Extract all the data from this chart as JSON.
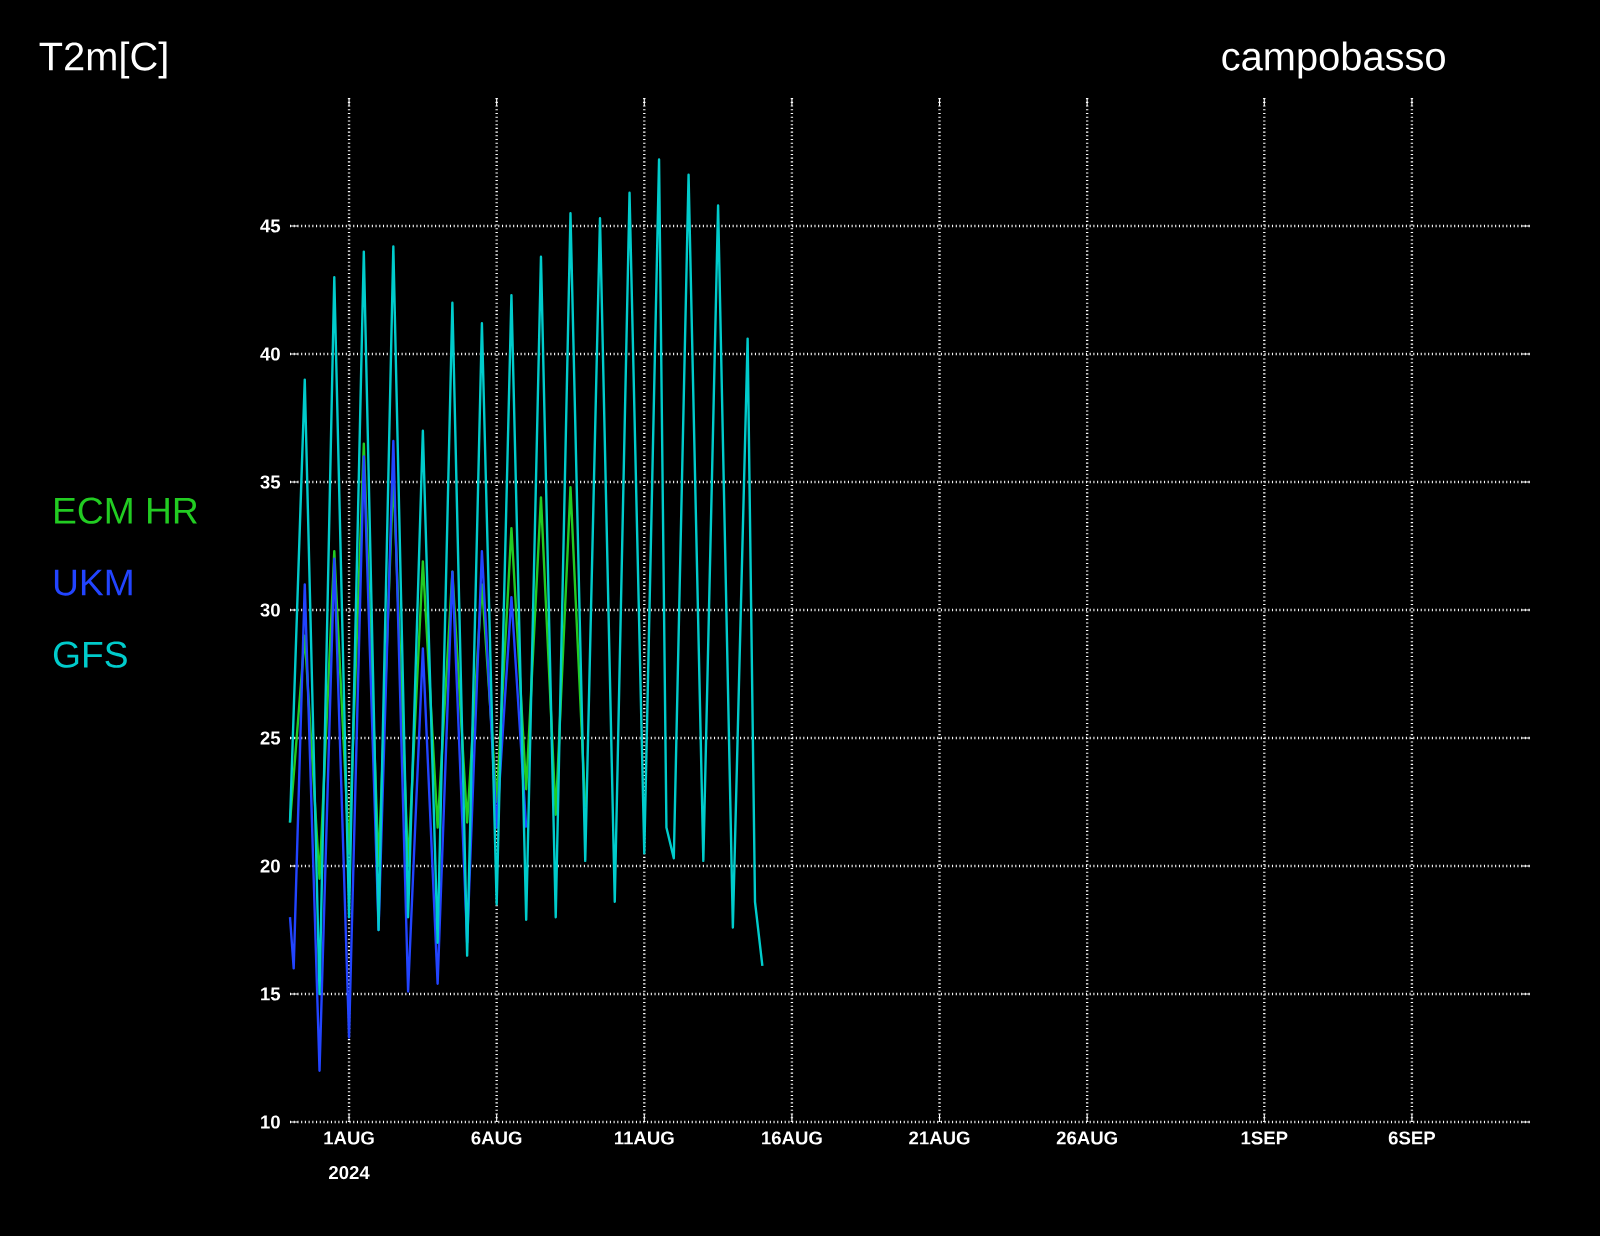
{
  "chart_data": {
    "type": "line",
    "title": "T2m[C]",
    "subtitle": "campobasso",
    "annotations": [
      "2024"
    ],
    "xlim": [
      "2024-07-30",
      "2024-09-10"
    ],
    "xticks": [
      {
        "value": "2024-08-01",
        "label": "1AUG"
      },
      {
        "value": "2024-08-06",
        "label": "6AUG"
      },
      {
        "value": "2024-08-11",
        "label": "11AUG"
      },
      {
        "value": "2024-08-16",
        "label": "16AUG"
      },
      {
        "value": "2024-08-21",
        "label": "21AUG"
      },
      {
        "value": "2024-08-26",
        "label": "26AUG"
      },
      {
        "value": "2024-09-01",
        "label": "1SEP"
      },
      {
        "value": "2024-09-06",
        "label": "6SEP"
      }
    ],
    "ylim": [
      10,
      50
    ],
    "yticks": [
      10,
      15,
      20,
      25,
      30,
      35,
      40,
      45
    ],
    "grid": true,
    "legend": "left",
    "marker": "none",
    "line_style": "solid",
    "series": [
      {
        "name": "ECM HR",
        "color": "#22cc22",
        "x": [
          "2024-07-30T00:00",
          "2024-07-30T12:00",
          "2024-07-31T00:00",
          "2024-07-31T12:00",
          "2024-08-01T00:00",
          "2024-08-01T12:00",
          "2024-08-02T00:00",
          "2024-08-02T12:00",
          "2024-08-03T00:00",
          "2024-08-03T12:00",
          "2024-08-04T00:00",
          "2024-08-04T12:00",
          "2024-08-05T00:00",
          "2024-08-05T12:00",
          "2024-08-06T00:00",
          "2024-08-06T12:00",
          "2024-08-07T00:00",
          "2024-08-07T12:00",
          "2024-08-08T00:00",
          "2024-08-08T12:00",
          "2024-08-09T00:00"
        ],
        "values": [
          21.7,
          29.0,
          19.5,
          32.3,
          20.5,
          36.5,
          20.0,
          35.3,
          20.0,
          31.9,
          21.5,
          31.5,
          21.7,
          31.0,
          22.5,
          33.2,
          23.0,
          34.4,
          22.0,
          34.8,
          22.3
        ]
      },
      {
        "name": "UKM",
        "color": "#2244ff",
        "x": [
          "2024-07-30T00:00",
          "2024-07-30T03:00",
          "2024-07-30T12:00",
          "2024-07-31T00:00",
          "2024-07-31T12:00",
          "2024-08-01T00:00",
          "2024-08-01T12:00",
          "2024-08-02T00:00",
          "2024-08-02T12:00",
          "2024-08-03T00:00",
          "2024-08-03T12:00",
          "2024-08-04T00:00",
          "2024-08-04T12:00",
          "2024-08-05T00:00",
          "2024-08-05T12:00",
          "2024-08-06T00:00",
          "2024-08-06T12:00",
          "2024-08-07T00:00"
        ],
        "values": [
          18.0,
          16.0,
          31.0,
          12.0,
          32.0,
          13.3,
          36.0,
          17.5,
          36.6,
          15.1,
          28.5,
          15.4,
          31.5,
          17.0,
          32.3,
          21.5,
          30.5,
          21.5
        ]
      },
      {
        "name": "GFS",
        "color": "#00cccc",
        "x": [
          "2024-07-30T00:00",
          "2024-07-30T12:00",
          "2024-07-31T00:00",
          "2024-07-31T12:00",
          "2024-08-01T00:00",
          "2024-08-01T12:00",
          "2024-08-02T00:00",
          "2024-08-02T12:00",
          "2024-08-03T00:00",
          "2024-08-03T12:00",
          "2024-08-04T00:00",
          "2024-08-04T12:00",
          "2024-08-05T00:00",
          "2024-08-05T12:00",
          "2024-08-06T00:00",
          "2024-08-06T12:00",
          "2024-08-07T00:00",
          "2024-08-07T12:00",
          "2024-08-08T00:00",
          "2024-08-08T12:00",
          "2024-08-09T00:00",
          "2024-08-09T12:00",
          "2024-08-10T00:00",
          "2024-08-10T12:00",
          "2024-08-11T00:00",
          "2024-08-11T12:00",
          "2024-08-11T18:00",
          "2024-08-12T00:00",
          "2024-08-12T12:00",
          "2024-08-13T00:00",
          "2024-08-13T12:00",
          "2024-08-14T00:00",
          "2024-08-14T12:00",
          "2024-08-14T18:00",
          "2024-08-15T00:00"
        ],
        "values": [
          21.7,
          39.0,
          15.0,
          43.0,
          18.0,
          44.0,
          17.5,
          44.2,
          18.0,
          37.0,
          17.0,
          42.0,
          16.5,
          41.2,
          18.5,
          42.3,
          17.9,
          43.8,
          18.0,
          45.5,
          20.2,
          45.3,
          18.6,
          46.3,
          20.5,
          47.6,
          21.5,
          20.3,
          47.0,
          20.2,
          45.8,
          17.6,
          40.6,
          18.6,
          16.1
        ]
      }
    ]
  }
}
